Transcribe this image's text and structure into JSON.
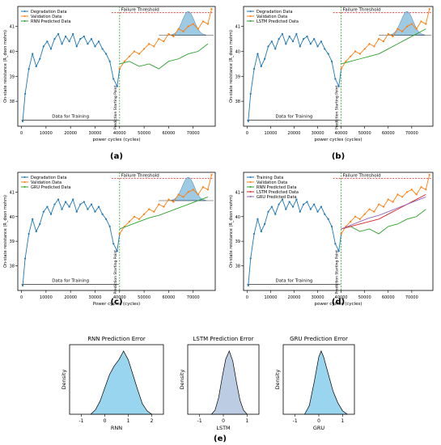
{
  "figure": {
    "panels": [
      {
        "id": "a",
        "caption": "(a)",
        "ylabel": "On-state resistance (R_dson mohm)",
        "xlabel": "power cycles (cycles)",
        "legend": [
          "Degradation Data",
          "Validation Data",
          "RNN Predicted Data"
        ],
        "pred_series": [
          "rnn"
        ],
        "threshold_label": "Failure Threshold",
        "train_label": "Data for Training",
        "pred_label": "Prediction Starting Point",
        "density": true
      },
      {
        "id": "b",
        "caption": "(b)",
        "ylabel": "On-state resistance (R_dson mohm)",
        "xlabel": "power cycles (cycles)",
        "legend": [
          "Degradation Data",
          "Validation Data",
          "LSTM Predicted Data"
        ],
        "pred_series": [
          "lstm"
        ],
        "threshold_label": "Failure Threshold",
        "train_label": "Data for Training",
        "pred_label": "Prediction Starting Point",
        "density": true
      },
      {
        "id": "c",
        "caption": "(c)",
        "ylabel": "On-state resistance (R_dson mohm)",
        "xlabel": "Power cycles (cycles)",
        "legend": [
          "Degradation Data",
          "Validation Data",
          "GRU Predicted Data"
        ],
        "pred_series": [
          "gru"
        ],
        "threshold_label": "Failure Threshold",
        "train_label": "Data for Training",
        "pred_label": "Prediction Starting Point",
        "density": true
      },
      {
        "id": "d",
        "caption": "(d)",
        "ylabel": "On-state resistance (R_dson mohm)",
        "xlabel": "power cycles (cycles)",
        "legend": [
          "Training Data",
          "Validation Data",
          "RNN Predicted Data",
          "LSTM Predicted Data",
          "GRU Predicted Data"
        ],
        "pred_series": [
          "rnn",
          "lstm",
          "gru"
        ],
        "threshold_label": "Failure Threshold",
        "train_label": "Data for Training",
        "pred_label": "Prediction Starting Point",
        "density": false
      }
    ],
    "error_panels": [
      {
        "title": "RNN Prediction Error",
        "xlabel": "RNN",
        "ylabel": "Density",
        "color": "#87ceeb"
      },
      {
        "title": "LSTM Prediction Error",
        "xlabel": "LSTM",
        "ylabel": "Density",
        "color": "#b0c4de"
      },
      {
        "title": "GRU Prediction Error",
        "xlabel": "GRU",
        "ylabel": "Density",
        "color": "#87ceeb"
      }
    ],
    "bottom_caption": "(e)"
  },
  "colors": {
    "degradation": "#1f77b4",
    "validation": "#ff7f0e",
    "rnn": "#2ca02c",
    "lstm": "#2ca02c",
    "gru": "#2ca02c",
    "rnn_d": "#2ca02c",
    "lstm_d": "#d62728",
    "gru_d": "#9467bd",
    "threshold": "#d62728",
    "split": "#2ca02c",
    "density_fill": "#6aaed6"
  },
  "chart_data": [
    {
      "type": "line",
      "title": "",
      "xlabel": "power cycles (cycles)",
      "ylabel": "On-state resistance (R_dson mohm)",
      "xlim": [
        -1500,
        79000
      ],
      "ylim": [
        37.0,
        41.8
      ],
      "xticks": [
        0,
        10000,
        20000,
        30000,
        40000,
        50000,
        60000,
        70000
      ],
      "yticks": [
        38,
        39,
        40,
        41
      ],
      "failure_threshold": 41.55,
      "prediction_start": 40000,
      "series": [
        {
          "name": "Degradation Data",
          "x": [
            500,
            1500,
            3000,
            4500,
            6000,
            7500,
            9000,
            10500,
            12000,
            13500,
            15000,
            16500,
            18000,
            19500,
            21000,
            22500,
            24000,
            25500,
            27000,
            28500,
            30000,
            31500,
            33000,
            34500,
            36000,
            37500,
            39000,
            40000
          ],
          "y": [
            37.2,
            38.3,
            39.3,
            39.9,
            39.4,
            39.7,
            40.2,
            40.4,
            40.1,
            40.5,
            40.7,
            40.3,
            40.6,
            40.4,
            40.7,
            40.2,
            40.5,
            40.6,
            40.3,
            40.5,
            40.2,
            40.4,
            40.1,
            39.9,
            39.6,
            38.9,
            38.6,
            39.3
          ]
        },
        {
          "name": "Validation Data",
          "x": [
            40000,
            42000,
            44000,
            46000,
            48000,
            50000,
            52000,
            54000,
            56000,
            58000,
            60000,
            62000,
            64000,
            66000,
            68000,
            70000,
            72000,
            74000,
            76000,
            77500
          ],
          "y": [
            39.3,
            39.6,
            39.8,
            40.0,
            39.9,
            40.1,
            40.3,
            40.2,
            40.5,
            40.4,
            40.7,
            40.6,
            40.9,
            40.8,
            41.0,
            41.1,
            40.9,
            41.2,
            41.1,
            41.7
          ]
        },
        {
          "name": "RNN Predicted Data",
          "x": [
            40000,
            44000,
            48000,
            52000,
            56000,
            60000,
            64000,
            68000,
            72000,
            76000
          ],
          "y": [
            39.5,
            39.6,
            39.4,
            39.5,
            39.3,
            39.6,
            39.7,
            39.9,
            40.0,
            40.3
          ]
        },
        {
          "name": "LSTM Predicted Data",
          "x": [
            40000,
            44000,
            48000,
            52000,
            56000,
            60000,
            64000,
            68000,
            72000,
            76000
          ],
          "y": [
            39.5,
            39.6,
            39.7,
            39.8,
            39.9,
            40.1,
            40.3,
            40.5,
            40.7,
            40.9
          ]
        },
        {
          "name": "GRU Predicted Data",
          "x": [
            40000,
            44000,
            48000,
            52000,
            56000,
            60000,
            64000,
            68000,
            72000,
            76000
          ],
          "y": [
            39.5,
            39.65,
            39.8,
            39.95,
            40.05,
            40.2,
            40.35,
            40.5,
            40.65,
            40.8
          ]
        }
      ]
    },
    {
      "type": "area",
      "title": "RNN Prediction Error",
      "xlabel": "RNN",
      "ylabel": "Density",
      "xlim": [
        -1.5,
        2.5
      ],
      "xticks": [
        -1,
        0,
        1,
        2
      ],
      "x": [
        -0.6,
        -0.4,
        -0.2,
        0,
        0.2,
        0.4,
        0.6,
        0.8,
        1.0,
        1.2,
        1.4,
        1.6,
        1.8,
        2.0
      ],
      "y": [
        0.0,
        0.05,
        0.15,
        0.3,
        0.45,
        0.55,
        0.62,
        0.72,
        0.62,
        0.45,
        0.28,
        0.12,
        0.04,
        0.0
      ]
    },
    {
      "type": "area",
      "title": "LSTM Prediction Error",
      "xlabel": "LSTM",
      "ylabel": "Density",
      "xlim": [
        -1.5,
        1.5
      ],
      "xticks": [
        -1,
        0,
        1
      ],
      "x": [
        -0.5,
        -0.35,
        -0.2,
        -0.05,
        0.1,
        0.25,
        0.4,
        0.55,
        0.7,
        0.85,
        1.0
      ],
      "y": [
        0.0,
        0.1,
        0.4,
        0.9,
        1.35,
        1.55,
        1.3,
        0.8,
        0.35,
        0.1,
        0.0
      ]
    },
    {
      "type": "area",
      "title": "GRU Prediction Error",
      "xlabel": "GRU",
      "ylabel": "Density",
      "xlim": [
        -1.5,
        1.5
      ],
      "xticks": [
        -1,
        0,
        1
      ],
      "x": [
        -0.6,
        -0.4,
        -0.2,
        0.0,
        0.1,
        0.2,
        0.4,
        0.6,
        0.8,
        1.0,
        1.2
      ],
      "y": [
        0.0,
        0.15,
        0.55,
        1.0,
        1.1,
        1.0,
        0.7,
        0.4,
        0.2,
        0.06,
        0.0
      ]
    }
  ]
}
